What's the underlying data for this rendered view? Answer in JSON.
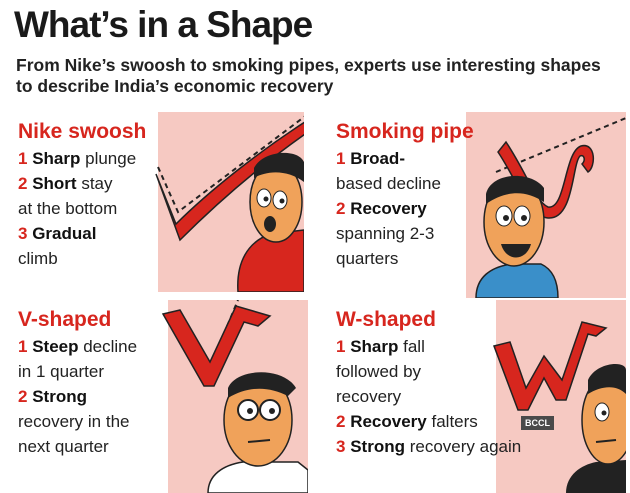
{
  "title": "What’s in a Shape",
  "subtitle": "From Nike’s swoosh to smoking pipes, experts use interesting shapes to describe India’s economic recovery",
  "panels": [
    {
      "title": "Nike swoosh",
      "points": [
        {
          "num": "1",
          "bold": "Sharp",
          "rest": " plunge"
        },
        {
          "num": "2",
          "bold": "Short",
          "rest": " stay"
        },
        {
          "num": "",
          "bold": "",
          "rest": "at the bottom"
        },
        {
          "num": "3",
          "bold": "Gradual",
          "rest": ""
        },
        {
          "num": "",
          "bold": "",
          "rest": "climb"
        }
      ]
    },
    {
      "title": "Smoking pipe",
      "points": [
        {
          "num": "1",
          "bold": "Broad-",
          "rest": ""
        },
        {
          "num": "",
          "bold": "",
          "rest": "based decline"
        },
        {
          "num": "2",
          "bold": "Recovery",
          "rest": ""
        },
        {
          "num": "",
          "bold": "",
          "rest": "spanning 2-3"
        },
        {
          "num": "",
          "bold": "",
          "rest": "quarters"
        }
      ]
    },
    {
      "title": "V-shaped",
      "points": [
        {
          "num": "1",
          "bold": "Steep",
          "rest": " decline"
        },
        {
          "num": "",
          "bold": "",
          "rest": "in 1 quarter"
        },
        {
          "num": "2",
          "bold": "Strong",
          "rest": ""
        },
        {
          "num": "",
          "bold": "",
          "rest": "recovery in the"
        },
        {
          "num": "",
          "bold": "",
          "rest": "next quarter"
        }
      ]
    },
    {
      "title": "W-shaped",
      "points": [
        {
          "num": "1",
          "bold": "Sharp",
          "rest": " fall"
        },
        {
          "num": "",
          "bold": "",
          "rest": "followed by"
        },
        {
          "num": "",
          "bold": "",
          "rest": "recovery"
        },
        {
          "num": "2",
          "bold": "Recovery",
          "rest": " falters"
        },
        {
          "num": "3",
          "bold": "Strong",
          "rest": " recovery again"
        }
      ]
    }
  ],
  "credit": "BCCL",
  "colors": {
    "accent_red": "#d7261e",
    "pink_bg": "#f6c9c2",
    "skin": "#f0a25a",
    "shirt_red": "#d7261e",
    "shirt_blue": "#3a8fc9"
  }
}
